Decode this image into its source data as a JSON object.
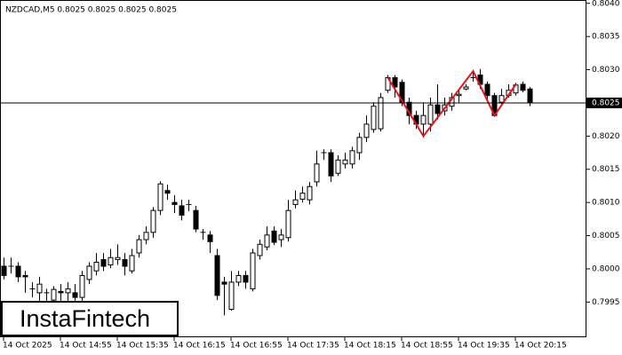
{
  "logo": "InstaFintech",
  "chart_data": {
    "type": "candlestick",
    "title": "NZDCAD,M5  0.8025 0.8025 0.8025 0.8025",
    "categories": [
      "14 Oct 2025",
      null,
      null,
      null,
      null,
      null,
      null,
      null,
      "14 Oct 14:55",
      null,
      null,
      null,
      null,
      null,
      null,
      null,
      "14 Oct 15:35",
      null,
      null,
      null,
      null,
      null,
      null,
      null,
      "14 Oct 16:15",
      null,
      null,
      null,
      null,
      null,
      null,
      null,
      "14 Oct 16:55",
      null,
      null,
      null,
      null,
      null,
      null,
      null,
      "14 Oct 17:35",
      null,
      null,
      null,
      null,
      null,
      null,
      null,
      "14 Oct 18:15",
      null,
      null,
      null,
      null,
      null,
      null,
      null,
      "14 Oct 18:55",
      null,
      null,
      null,
      null,
      null,
      null,
      null,
      "14 Oct 19:35",
      null,
      null,
      null,
      null,
      null,
      null,
      null,
      "14 Oct 20:15",
      null,
      null
    ],
    "open": [
      0.80004,
      0.80004,
      0.80004,
      0.7999,
      0.7997,
      0.79964,
      0.79964,
      0.79953,
      0.79966,
      0.79964,
      0.79964,
      0.79957,
      0.79984,
      0.79997,
      0.80014,
      0.80006,
      0.80014,
      0.80014,
      0.79997,
      0.80024,
      0.80044,
      0.80055,
      0.80088,
      0.80118,
      0.801,
      0.80095,
      0.80097,
      0.80088,
      0.80055,
      0.80051,
      0.8002,
      0.7998,
      0.79939,
      0.7998,
      0.7999,
      0.7997,
      0.8002,
      0.80033,
      0.80057,
      0.80044,
      0.80047,
      0.80097,
      0.80105,
      0.80104,
      0.80131,
      0.80175,
      0.80175,
      0.80144,
      0.80158,
      0.80158,
      0.80175,
      0.80198,
      0.8021,
      0.80211,
      0.80269,
      0.80288,
      0.80281,
      0.80251,
      0.80231,
      0.80218,
      0.80218,
      0.80247,
      0.80238,
      0.80245,
      0.80261,
      0.80271,
      0.80288,
      0.80292,
      0.80278,
      0.80261,
      0.80251,
      0.80261,
      0.80265,
      0.80278,
      0.80271
    ],
    "high": [
      0.80017,
      0.80017,
      0.8001,
      0.79997,
      0.7998,
      0.79988,
      0.7997,
      0.79974,
      0.79977,
      0.7998,
      0.79977,
      0.79997,
      0.8001,
      0.80024,
      0.80024,
      0.8003,
      0.80037,
      0.80024,
      0.8003,
      0.80051,
      0.80064,
      0.80093,
      0.80132,
      0.80127,
      0.80111,
      0.80104,
      0.80104,
      0.80095,
      0.8006,
      0.80057,
      0.8003,
      0.79988,
      0.79997,
      0.79997,
      0.79997,
      0.8003,
      0.80044,
      0.80064,
      0.80064,
      0.8006,
      0.80104,
      0.80118,
      0.80124,
      0.80131,
      0.80178,
      0.8018,
      0.8018,
      0.80171,
      0.80175,
      0.80184,
      0.80205,
      0.80231,
      0.80251,
      0.80265,
      0.80292,
      0.80292,
      0.80285,
      0.80258,
      0.80238,
      0.80251,
      0.80258,
      0.80278,
      0.80258,
      0.80265,
      0.80271,
      0.80278,
      0.80298,
      0.80301,
      0.80282,
      0.80265,
      0.80271,
      0.80278,
      0.8028,
      0.80282,
      0.80274
    ],
    "low": [
      0.79984,
      0.79993,
      0.7998,
      0.79964,
      0.79957,
      0.7995,
      0.7995,
      0.79943,
      0.79943,
      0.7995,
      0.79943,
      0.7995,
      0.79977,
      0.7999,
      0.79997,
      0.80001,
      0.80006,
      0.7999,
      0.79993,
      0.80017,
      0.80037,
      0.80047,
      0.80081,
      0.80104,
      0.80084,
      0.80073,
      0.80087,
      0.80055,
      0.80044,
      0.80024,
      0.79953,
      0.7993,
      0.79937,
      0.79974,
      0.7997,
      0.79966,
      0.80014,
      0.80028,
      0.80036,
      0.80033,
      0.80041,
      0.80091,
      0.801,
      0.80097,
      0.80124,
      0.80164,
      0.80131,
      0.8014,
      0.80151,
      0.80151,
      0.80164,
      0.80191,
      0.80205,
      0.80207,
      0.80265,
      0.80258,
      0.80245,
      0.80218,
      0.80211,
      0.80198,
      0.80207,
      0.80225,
      0.80231,
      0.80238,
      0.80251,
      0.80269,
      0.80282,
      0.80271,
      0.80255,
      0.80229,
      0.80245,
      0.80258,
      0.80261,
      0.80266,
      0.80245
    ],
    "close": [
      0.7999,
      0.80004,
      0.79988,
      0.79988,
      0.7997,
      0.79977,
      0.79964,
      0.79969,
      0.79964,
      0.7997,
      0.79957,
      0.7999,
      0.80004,
      0.8001,
      0.80004,
      0.80017,
      0.80017,
      0.80004,
      0.8002,
      0.80044,
      0.80055,
      0.80088,
      0.80128,
      0.80114,
      0.80097,
      0.80081,
      0.80097,
      0.8006,
      0.80055,
      0.80041,
      0.7996,
      0.79977,
      0.7998,
      0.7999,
      0.7998,
      0.80024,
      0.80037,
      0.80051,
      0.8004,
      0.80051,
      0.80088,
      0.80104,
      0.80114,
      0.80124,
      0.80158,
      0.80175,
      0.8014,
      0.80164,
      0.80164,
      0.80178,
      0.80198,
      0.80218,
      0.80245,
      0.80258,
      0.80288,
      0.80274,
      0.80251,
      0.80231,
      0.80218,
      0.80231,
      0.80247,
      0.80234,
      0.80247,
      0.80258,
      0.80263,
      0.80274,
      0.80288,
      0.80278,
      0.80261,
      0.80231,
      0.80261,
      0.80269,
      0.80277,
      0.80269,
      0.8025
    ],
    "ylim": [
      0.79897,
      0.80405
    ],
    "yticks": [
      0.7995,
      {
        "value": 0.8,
        "label": "0.8000"
      },
      0.8005,
      {
        "value": 0.801,
        "label": "0.8010"
      },
      0.8015,
      {
        "value": 0.802,
        "label": "0.8020"
      },
      0.8025,
      {
        "value": 0.803,
        "label": "0.8030"
      },
      0.8035,
      {
        "value": 0.804,
        "label": "0.8040"
      }
    ],
    "current_price": 0.8025,
    "pattern": {
      "color": "#e8141a",
      "x_index": [
        54,
        59,
        66,
        69,
        72
      ],
      "values": [
        0.80288,
        0.802,
        0.80298,
        0.80231,
        0.80278
      ]
    }
  }
}
